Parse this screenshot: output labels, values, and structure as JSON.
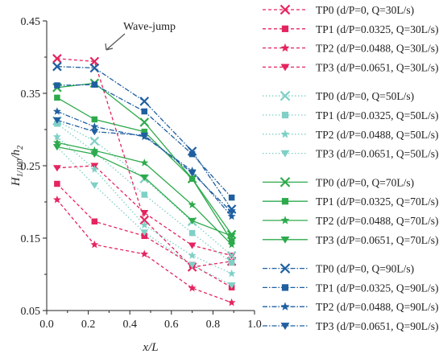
{
  "chart_data": {
    "type": "line",
    "xlabel": "x/L",
    "ylabel": "H1/100/h2",
    "ylabel_main": "H",
    "ylabel_sub": "1/100",
    "ylabel_tail": "/h",
    "ylabel_sub2": "2",
    "xlim": [
      0.0,
      1.0
    ],
    "ylim": [
      0.05,
      0.45
    ],
    "x_ticks": [
      "0.0",
      "0.2",
      "0.4",
      "0.6",
      "0.8",
      "1.0"
    ],
    "y_ticks": [
      "0.05",
      "0.15",
      "0.25",
      "0.35",
      "0.45"
    ],
    "annotation": "Wave-jump",
    "legend_position": "right",
    "x": [
      0.05,
      0.23,
      0.47,
      0.7,
      0.89
    ],
    "series": [
      {
        "name": "TP0 (d/P=0, Q=30L/s)",
        "color": "#e4245f",
        "marker": "x",
        "dash": "4,3",
        "values": [
          0.398,
          0.394,
          0.175,
          0.11,
          0.118
        ]
      },
      {
        "name": "TP1 (d/P=0.0325, Q=30L/s)",
        "color": "#e4245f",
        "marker": "square",
        "dash": "4,3",
        "values": [
          0.225,
          0.173,
          0.153,
          0.113,
          0.082
        ]
      },
      {
        "name": "TP2 (d/P=0.0488, Q=30L/s)",
        "color": "#e4245f",
        "marker": "star",
        "dash": "4,3",
        "values": [
          0.203,
          0.141,
          0.128,
          0.081,
          0.061
        ]
      },
      {
        "name": "TP3 (d/P=0.0651, Q=30L/s)",
        "color": "#e4245f",
        "marker": "tri",
        "dash": "4,3",
        "values": [
          0.247,
          0.25,
          0.185,
          0.14,
          0.126
        ]
      },
      {
        "name": "TP0 (d/P=0, Q=50L/s)",
        "color": "#7fd0c6",
        "marker": "x",
        "dash": "1.5,2.5",
        "values": [
          0.312,
          0.284,
          0.232,
          0.173,
          0.126
        ]
      },
      {
        "name": "TP1 (d/P=0.0325, Q=50L/s)",
        "color": "#7fd0c6",
        "marker": "square",
        "dash": "1.5,2.5",
        "values": [
          0.308,
          0.269,
          0.21,
          0.157,
          0.116
        ]
      },
      {
        "name": "TP2 (d/P=0.0488, Q=50L/s)",
        "color": "#7fd0c6",
        "marker": "star",
        "dash": "1.5,2.5",
        "values": [
          0.29,
          0.245,
          0.168,
          0.126,
          0.101
        ]
      },
      {
        "name": "TP3 (d/P=0.0651, Q=50L/s)",
        "color": "#7fd0c6",
        "marker": "tri",
        "dash": "1.5,2.5",
        "values": [
          0.276,
          0.223,
          0.158,
          0.113,
          0.085
        ]
      },
      {
        "name": "TP0 (d/P=0, Q=70L/s)",
        "color": "#2eaa4c",
        "marker": "x",
        "dash": "",
        "values": [
          0.358,
          0.364,
          0.31,
          0.232,
          0.155
        ]
      },
      {
        "name": "TP1 (d/P=0.0325, Q=70L/s)",
        "color": "#2eaa4c",
        "marker": "square",
        "dash": "",
        "values": [
          0.344,
          0.314,
          0.297,
          0.232,
          0.146
        ]
      },
      {
        "name": "TP2 (d/P=0.0488, Q=70L/s)",
        "color": "#2eaa4c",
        "marker": "star",
        "dash": "",
        "values": [
          0.282,
          0.271,
          0.254,
          0.196,
          0.141
        ]
      },
      {
        "name": "TP3 (d/P=0.0651, Q=70L/s)",
        "color": "#2eaa4c",
        "marker": "tri",
        "dash": "",
        "values": [
          0.276,
          0.266,
          0.234,
          0.174,
          0.153
        ]
      },
      {
        "name": "TP0 (d/P=0, Q=90L/s)",
        "color": "#1f5fa0",
        "marker": "x",
        "dash": "6,2,1.5,2",
        "values": [
          0.387,
          0.385,
          0.339,
          0.27,
          0.19
        ]
      },
      {
        "name": "TP1 (d/P=0.0325, Q=90L/s)",
        "color": "#1f5fa0",
        "marker": "square",
        "dash": "6,2,1.5,2",
        "values": [
          0.361,
          0.362,
          0.325,
          0.266,
          0.206
        ]
      },
      {
        "name": "TP2 (d/P=0.0488, Q=90L/s)",
        "color": "#1f5fa0",
        "marker": "star",
        "dash": "6,2,1.5,2",
        "values": [
          0.325,
          0.304,
          0.29,
          0.243,
          0.18
        ]
      },
      {
        "name": "TP3 (d/P=0.0651, Q=90L/s)",
        "color": "#1f5fa0",
        "marker": "tri",
        "dash": "6,2,1.5,2",
        "values": [
          0.313,
          0.297,
          0.292,
          0.24,
          0.186
        ]
      }
    ]
  }
}
